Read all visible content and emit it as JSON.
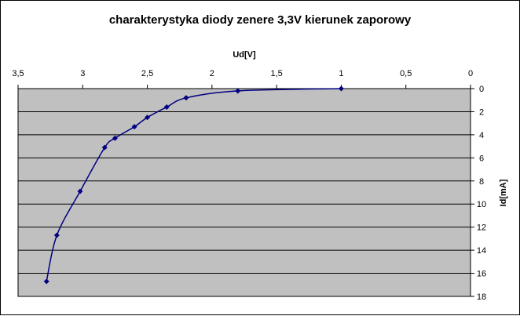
{
  "chart_data": {
    "type": "scatter",
    "title": "charakterystyka diody zenere 3,3V kierunek zaporowy",
    "xlabel": "Ud[V]",
    "ylabel": "Id[mA]",
    "x_reversed": true,
    "y_reversed": true,
    "x_axis_position": "top",
    "y_axis_position": "right",
    "xlim": [
      0,
      3.5
    ],
    "ylim": [
      0,
      18
    ],
    "x_ticks": [
      "0",
      "0,5",
      "1",
      "1,5",
      "2",
      "2,5",
      "3",
      "3,5"
    ],
    "y_ticks": [
      "0",
      "2",
      "4",
      "6",
      "8",
      "10",
      "12",
      "14",
      "16",
      "18"
    ],
    "grid": "horizontal",
    "plot_background": "#c0c0c0",
    "series_color": "#000080",
    "series": [
      {
        "x": [
          1.0,
          1.8,
          2.2,
          2.35,
          2.5,
          2.6,
          2.75,
          2.83,
          3.02,
          3.2,
          3.28
        ],
        "y": [
          0,
          0.2,
          0.8,
          1.6,
          2.5,
          3.3,
          4.3,
          5.1,
          8.9,
          12.7,
          16.7
        ]
      }
    ]
  }
}
